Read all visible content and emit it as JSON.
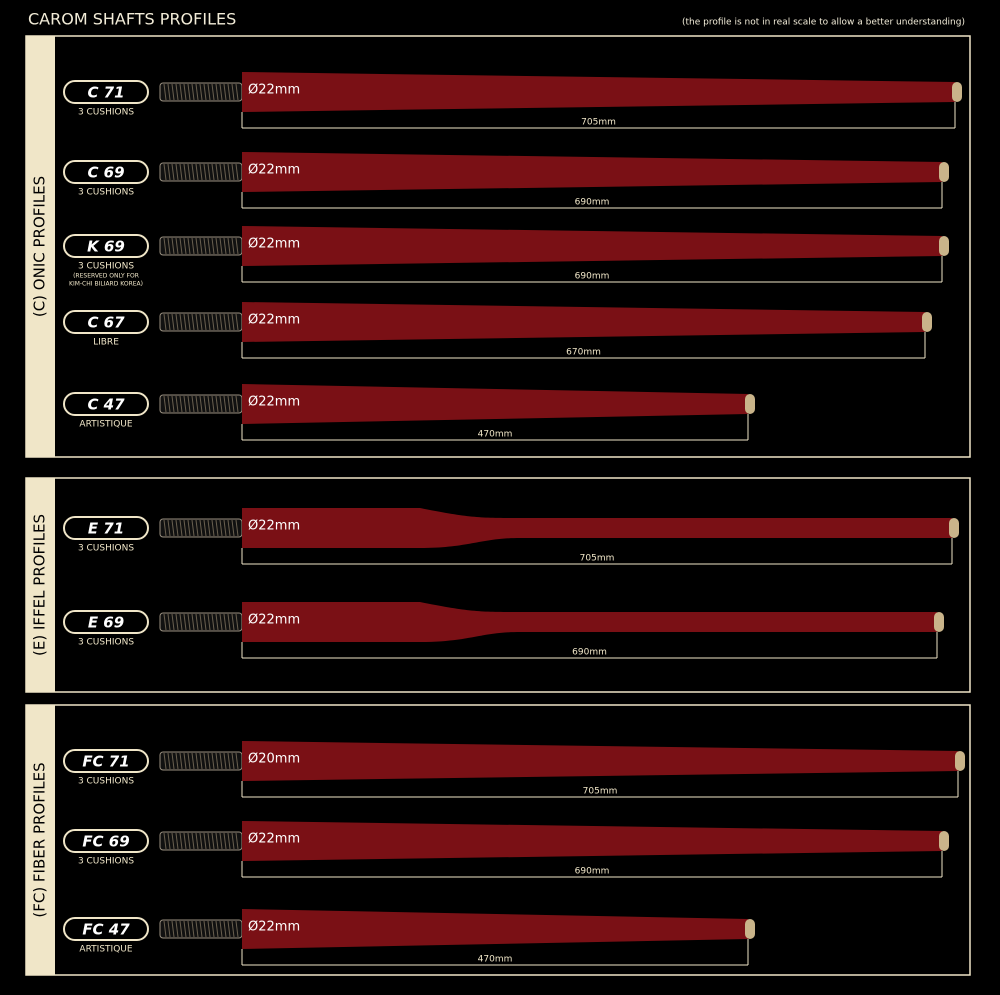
{
  "header": {
    "title": "CAROM SHAFTS PROFILES",
    "note": "(the profile is not in real scale to allow a better understanding)"
  },
  "sections": [
    {
      "label": "(C) ONIC PROFILES",
      "shafts": [
        {
          "name": "C 71",
          "details": [
            "3 CUSHIONS"
          ],
          "diameter": "Ø22mm",
          "length": "705mm"
        },
        {
          "name": "C 69",
          "details": [
            "3 CUSHIONS"
          ],
          "diameter": "Ø22mm",
          "length": "690mm"
        },
        {
          "name": "K 69",
          "details": [
            "3 CUSHIONS",
            "(RESERVED ONLY FOR",
            "KIM-CHI BILIARD KOREA)"
          ],
          "diameter": "Ø22mm",
          "length": "690mm"
        },
        {
          "name": "C 67",
          "details": [
            "LIBRE"
          ],
          "diameter": "Ø22mm",
          "length": "670mm"
        },
        {
          "name": "C 47",
          "details": [
            "ARTISTIQUE"
          ],
          "diameter": "Ø22mm",
          "length": "470mm"
        }
      ]
    },
    {
      "label": "(E) IFFEL PROFILES",
      "shafts": [
        {
          "name": "E 71",
          "details": [
            "3 CUSHIONS"
          ],
          "diameter": "Ø22mm",
          "length": "705mm"
        },
        {
          "name": "E 69",
          "details": [
            "3 CUSHIONS"
          ],
          "diameter": "Ø22mm",
          "length": "690mm"
        }
      ]
    },
    {
      "label": "(FC) FIBER PROFILES",
      "shafts": [
        {
          "name": "FC 71",
          "details": [
            "3 CUSHIONS"
          ],
          "diameter": "Ø20mm",
          "length": "705mm"
        },
        {
          "name": "FC 69",
          "details": [
            "3 CUSHIONS"
          ],
          "diameter": "Ø22mm",
          "length": "690mm"
        },
        {
          "name": "FC 47",
          "details": [
            "ARTISTIQUE"
          ],
          "diameter": "Ø22mm",
          "length": "470mm"
        }
      ]
    }
  ]
}
